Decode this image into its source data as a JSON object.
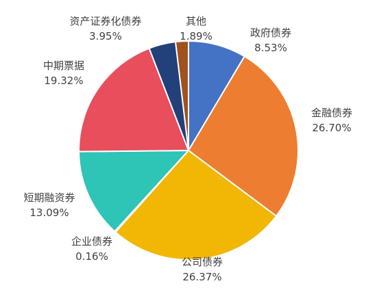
{
  "chart_data": {
    "type": "pie",
    "title": "",
    "legend": "none",
    "slices": [
      {
        "name": "政府债券",
        "value": 8.53,
        "label": "8.53%",
        "color": "#4472C4"
      },
      {
        "name": "金融债券",
        "value": 26.7,
        "label": "26.70%",
        "color": "#ED7D31"
      },
      {
        "name": "公司债券",
        "value": 26.37,
        "label": "26.37%",
        "color": "#F2B705"
      },
      {
        "name": "企业债券",
        "value": 0.16,
        "label": "0.16%",
        "color": "#2E8B57"
      },
      {
        "name": "短期融资券",
        "value": 13.09,
        "label": "13.09%",
        "color": "#2EC4B6"
      },
      {
        "name": "中期票据",
        "value": 19.32,
        "label": "19.32%",
        "color": "#E84E5C"
      },
      {
        "name": "资产证券化债券",
        "value": 3.95,
        "label": "3.95%",
        "color": "#22407A"
      },
      {
        "name": "其他",
        "value": 1.89,
        "label": "1.89%",
        "color": "#A0521D"
      }
    ]
  }
}
